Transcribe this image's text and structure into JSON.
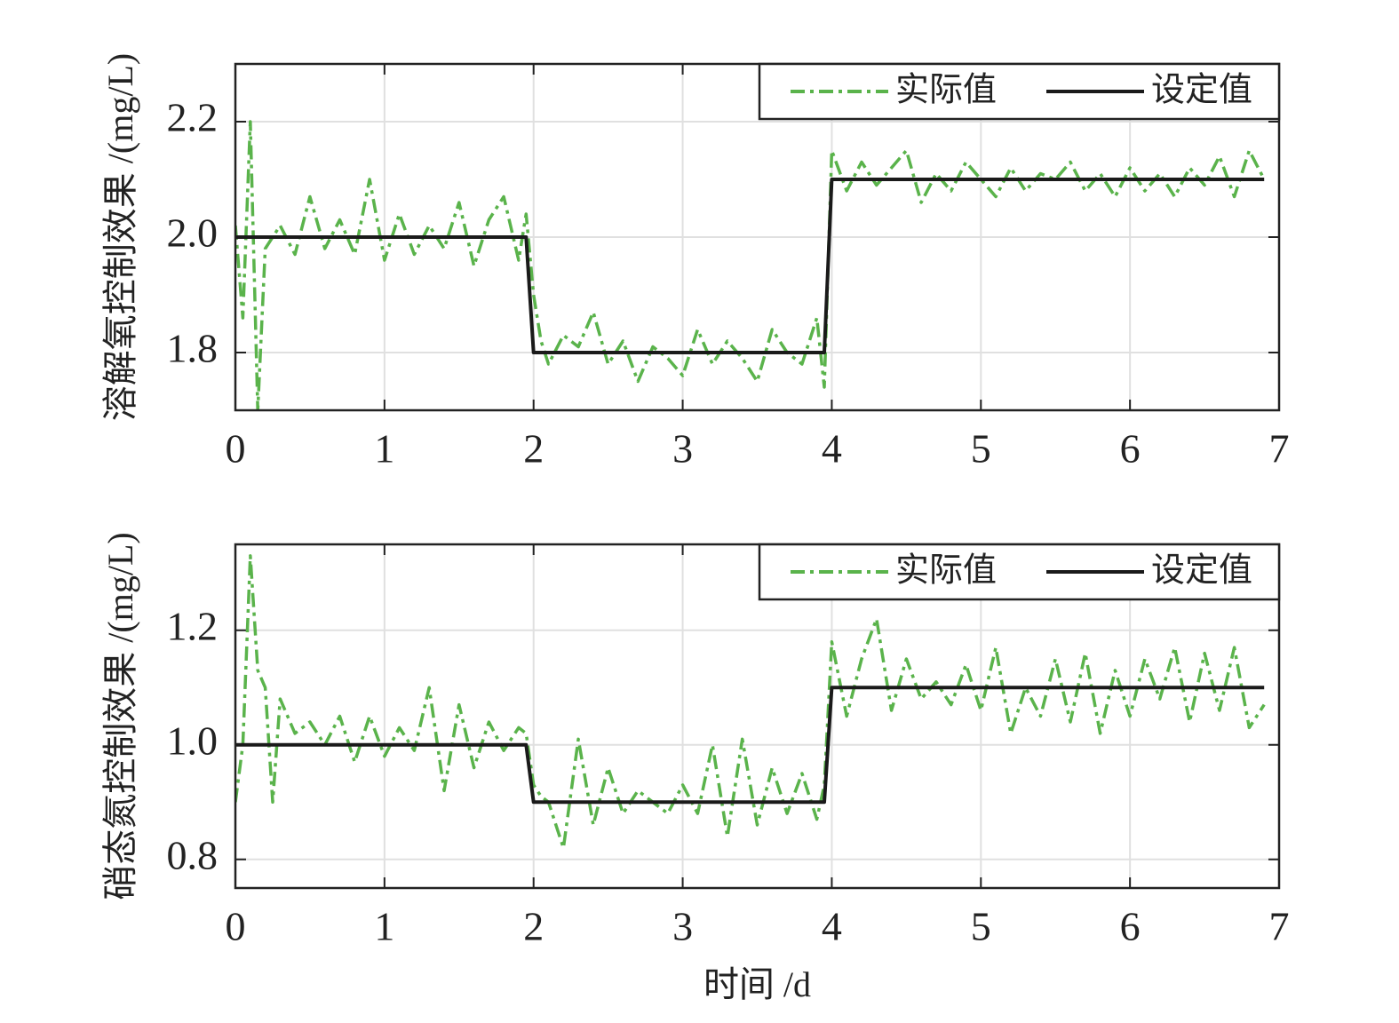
{
  "chart_data": [
    {
      "type": "line",
      "ylabel": "溶解氧控制效果 /(mg/L)",
      "xlim": [
        0,
        7
      ],
      "xticks": [
        0,
        1,
        2,
        3,
        4,
        5,
        6,
        7
      ],
      "ylim": [
        1.7,
        2.3
      ],
      "yticks": [
        1.8,
        {
          "value": 2,
          "label": "2.0"
        },
        2.2
      ],
      "grid": true,
      "legend": "upper right",
      "series": [
        {
          "name": "实际值",
          "color": "#5ab34b",
          "style": "dashdot",
          "x": [
            0,
            0.05,
            0.1,
            0.15,
            0.2,
            0.25,
            0.3,
            0.4,
            0.5,
            0.6,
            0.7,
            0.8,
            0.9,
            1.0,
            1.1,
            1.2,
            1.3,
            1.4,
            1.5,
            1.6,
            1.7,
            1.8,
            1.9,
            1.95,
            2.0,
            2.05,
            2.1,
            2.2,
            2.3,
            2.4,
            2.5,
            2.6,
            2.7,
            2.8,
            2.9,
            3.0,
            3.1,
            3.2,
            3.3,
            3.4,
            3.5,
            3.6,
            3.7,
            3.8,
            3.9,
            3.95,
            4.0,
            4.1,
            4.2,
            4.3,
            4.4,
            4.5,
            4.6,
            4.7,
            4.8,
            4.9,
            5.0,
            5.1,
            5.2,
            5.3,
            5.4,
            5.5,
            5.6,
            5.7,
            5.8,
            5.9,
            6.0,
            6.1,
            6.2,
            6.3,
            6.4,
            6.5,
            6.6,
            6.7,
            6.8,
            6.9
          ],
          "values": [
            2.02,
            1.86,
            2.2,
            1.7,
            1.98,
            2.0,
            2.02,
            1.97,
            2.07,
            1.98,
            2.03,
            1.97,
            2.1,
            1.96,
            2.04,
            1.97,
            2.02,
            1.98,
            2.06,
            1.95,
            2.03,
            2.07,
            1.96,
            2.04,
            1.9,
            1.82,
            1.78,
            1.83,
            1.81,
            1.87,
            1.78,
            1.82,
            1.75,
            1.81,
            1.79,
            1.76,
            1.84,
            1.78,
            1.82,
            1.79,
            1.75,
            1.84,
            1.8,
            1.78,
            1.86,
            1.74,
            2.15,
            2.08,
            2.13,
            2.09,
            2.12,
            2.15,
            2.06,
            2.11,
            2.08,
            2.13,
            2.1,
            2.07,
            2.12,
            2.08,
            2.11,
            2.1,
            2.13,
            2.08,
            2.11,
            2.07,
            2.12,
            2.08,
            2.11,
            2.07,
            2.12,
            2.09,
            2.14,
            2.07,
            2.15,
            2.1
          ]
        },
        {
          "name": "设定值",
          "color": "#1a1a1a",
          "style": "solid",
          "x": [
            0,
            1.95,
            2.0,
            3.95,
            4.0,
            6.9
          ],
          "values": [
            2,
            2,
            1.8,
            1.8,
            2.1,
            2.1
          ]
        }
      ]
    },
    {
      "type": "line",
      "ylabel": "硝态氮控制效果 /(mg/L)",
      "xlabel": "时间 /d",
      "xlim": [
        0,
        7
      ],
      "xticks": [
        0,
        1,
        2,
        3,
        4,
        5,
        6,
        7
      ],
      "ylim": [
        0.75,
        1.35
      ],
      "yticks": [
        0.8,
        {
          "value": 1,
          "label": "1.0"
        },
        1.2
      ],
      "grid": true,
      "legend": "upper right",
      "series": [
        {
          "name": "实际值",
          "color": "#5ab34b",
          "style": "dashdot",
          "x": [
            0,
            0.05,
            0.1,
            0.15,
            0.2,
            0.25,
            0.3,
            0.4,
            0.5,
            0.6,
            0.7,
            0.8,
            0.9,
            1.0,
            1.1,
            1.2,
            1.3,
            1.4,
            1.5,
            1.6,
            1.7,
            1.8,
            1.9,
            1.95,
            2.0,
            2.05,
            2.1,
            2.2,
            2.3,
            2.4,
            2.5,
            2.6,
            2.7,
            2.8,
            2.9,
            3.0,
            3.1,
            3.2,
            3.3,
            3.4,
            3.5,
            3.6,
            3.7,
            3.8,
            3.9,
            3.95,
            4.0,
            4.1,
            4.2,
            4.3,
            4.4,
            4.5,
            4.6,
            4.7,
            4.8,
            4.9,
            5.0,
            5.1,
            5.2,
            5.3,
            5.4,
            5.5,
            5.6,
            5.7,
            5.8,
            5.9,
            6.0,
            6.1,
            6.2,
            6.3,
            6.4,
            6.5,
            6.6,
            6.7,
            6.8,
            6.9
          ],
          "values": [
            0.9,
            1.0,
            1.33,
            1.13,
            1.1,
            0.9,
            1.08,
            1.02,
            1.04,
            1.0,
            1.05,
            0.97,
            1.05,
            0.98,
            1.03,
            0.99,
            1.1,
            0.92,
            1.07,
            0.96,
            1.04,
            0.99,
            1.03,
            1.02,
            0.93,
            0.91,
            0.9,
            0.82,
            1.01,
            0.86,
            0.96,
            0.88,
            0.92,
            0.9,
            0.88,
            0.93,
            0.88,
            1.0,
            0.84,
            1.01,
            0.86,
            0.96,
            0.88,
            0.95,
            0.87,
            0.93,
            1.18,
            1.05,
            1.15,
            1.22,
            1.06,
            1.15,
            1.08,
            1.11,
            1.07,
            1.14,
            1.06,
            1.17,
            1.02,
            1.1,
            1.05,
            1.15,
            1.04,
            1.16,
            1.02,
            1.13,
            1.05,
            1.15,
            1.08,
            1.17,
            1.04,
            1.16,
            1.06,
            1.17,
            1.03,
            1.07
          ]
        },
        {
          "name": "设定值",
          "color": "#1a1a1a",
          "style": "solid",
          "x": [
            0,
            1.95,
            2.0,
            3.95,
            4.0,
            6.9
          ],
          "values": [
            1,
            1,
            0.9,
            0.9,
            1.1,
            1.1
          ]
        }
      ]
    }
  ]
}
